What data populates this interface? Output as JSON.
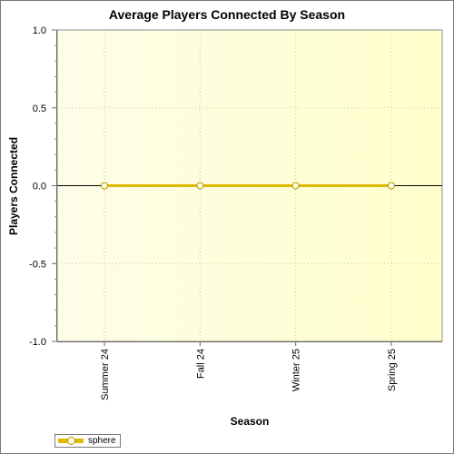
{
  "chart_data": {
    "type": "line",
    "title": "Average Players Connected By Season",
    "xlabel": "Season",
    "ylabel": "Players Connected",
    "categories": [
      "Summer 24",
      "Fall 24",
      "Winter 25",
      "Spring 25"
    ],
    "series": [
      {
        "name": "sphere",
        "values": [
          0,
          0,
          0,
          0
        ]
      }
    ],
    "ylim": [
      -1.0,
      1.0
    ],
    "yticks": [
      "1.0",
      "0.5",
      "0.0",
      "-0.5",
      "-1.0"
    ],
    "grid": true,
    "legend_position": "bottom-left",
    "colors": {
      "series_line": "#e0b800",
      "marker_fill": "#ffffee",
      "marker_stroke": "#b89400",
      "plot_bg_start": "#fefde8",
      "plot_bg_end": "#ffffcc",
      "zero_line": "#000000",
      "grid": "#c8c8a0"
    }
  }
}
